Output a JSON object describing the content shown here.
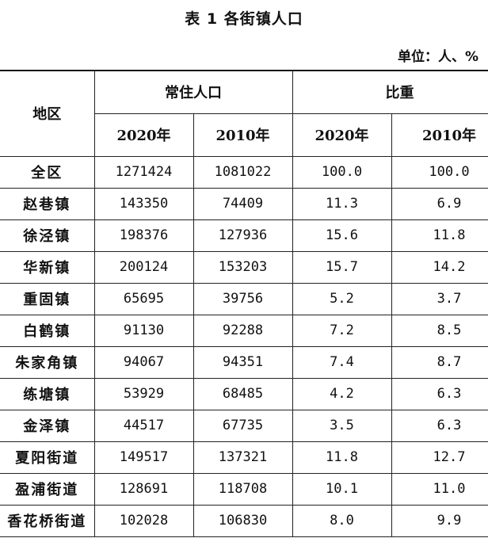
{
  "title": "表 1  各街镇人口",
  "unit": "单位：人、%",
  "header": {
    "region": "地区",
    "group_population": "常住人口",
    "group_share": "比重",
    "pop_2020": "2020年",
    "pop_2010": "2010年",
    "share_2020": "2020年",
    "share_2010": "2010年"
  },
  "rows": [
    {
      "region": "全区",
      "pop_2020": "1271424",
      "pop_2010": "1081022",
      "share_2020": "100.0",
      "share_2010": "100.0"
    },
    {
      "region": "赵巷镇",
      "pop_2020": "143350",
      "pop_2010": "74409",
      "share_2020": "11.3",
      "share_2010": "6.9"
    },
    {
      "region": "徐泾镇",
      "pop_2020": "198376",
      "pop_2010": "127936",
      "share_2020": "15.6",
      "share_2010": "11.8"
    },
    {
      "region": "华新镇",
      "pop_2020": "200124",
      "pop_2010": "153203",
      "share_2020": "15.7",
      "share_2010": "14.2"
    },
    {
      "region": "重固镇",
      "pop_2020": "65695",
      "pop_2010": "39756",
      "share_2020": "5.2",
      "share_2010": "3.7"
    },
    {
      "region": "白鹤镇",
      "pop_2020": "91130",
      "pop_2010": "92288",
      "share_2020": "7.2",
      "share_2010": "8.5"
    },
    {
      "region": "朱家角镇",
      "pop_2020": "94067",
      "pop_2010": "94351",
      "share_2020": "7.4",
      "share_2010": "8.7"
    },
    {
      "region": "练塘镇",
      "pop_2020": "53929",
      "pop_2010": "68485",
      "share_2020": "4.2",
      "share_2010": "6.3"
    },
    {
      "region": "金泽镇",
      "pop_2020": "44517",
      "pop_2010": "67735",
      "share_2020": "3.5",
      "share_2010": "6.3"
    },
    {
      "region": "夏阳街道",
      "pop_2020": "149517",
      "pop_2010": "137321",
      "share_2020": "11.8",
      "share_2010": "12.7"
    },
    {
      "region": "盈浦街道",
      "pop_2020": "128691",
      "pop_2010": "118708",
      "share_2020": "10.1",
      "share_2010": "11.0"
    },
    {
      "region": "香花桥街道",
      "pop_2020": "102028",
      "pop_2010": "106830",
      "share_2020": "8.0",
      "share_2010": "9.9"
    }
  ]
}
